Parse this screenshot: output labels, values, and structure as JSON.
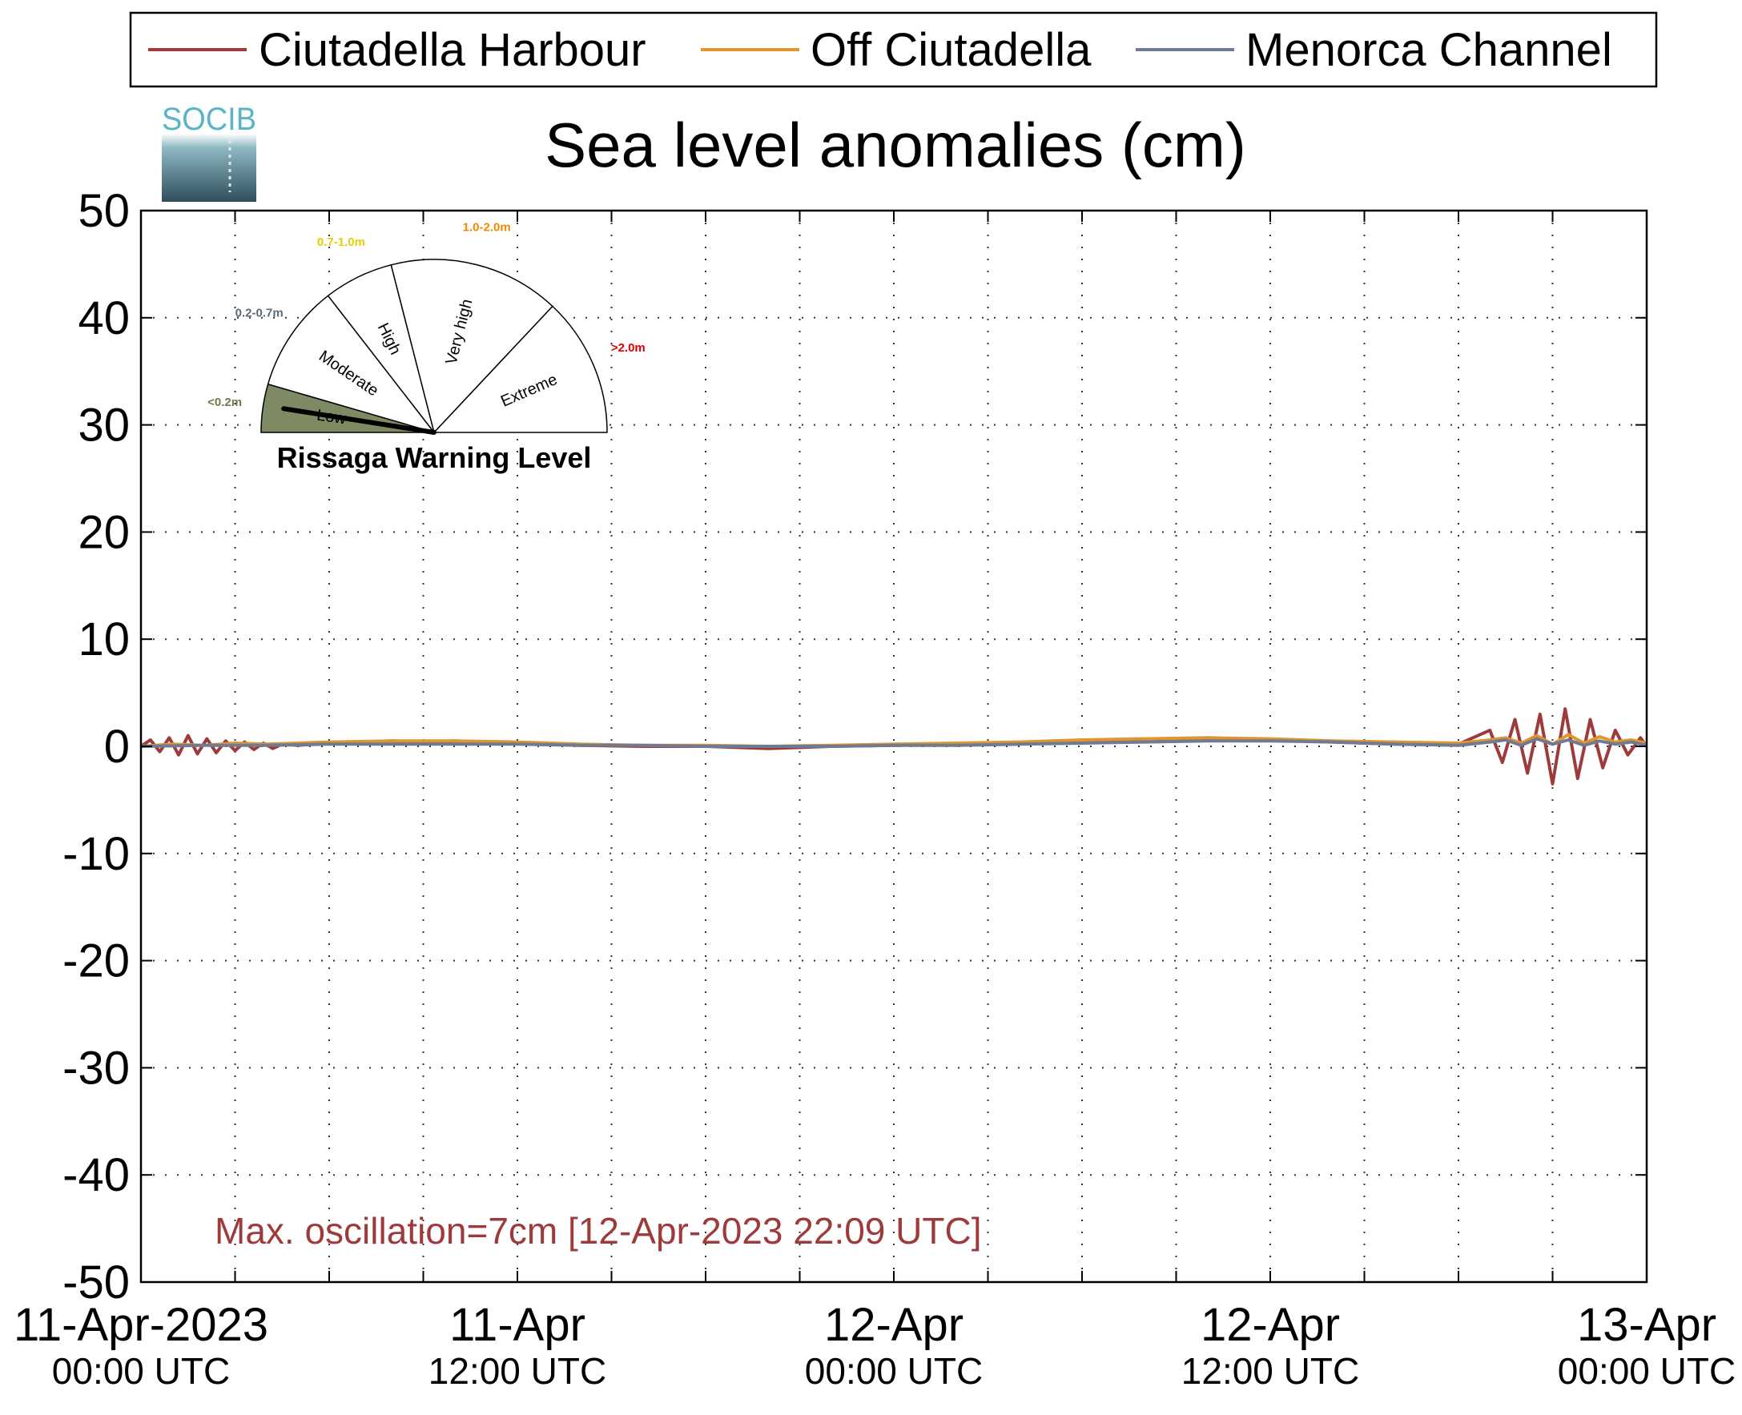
{
  "logo": {
    "text": "SOCIB"
  },
  "chart_data": {
    "type": "line",
    "title": "Sea level anomalies (cm)",
    "xlabel": "",
    "ylabel": "",
    "ylim": [
      -50,
      50
    ],
    "yticks": [
      50,
      40,
      30,
      20,
      10,
      0,
      -10,
      -20,
      -30,
      -40,
      -50
    ],
    "xlim_hours": [
      0,
      48
    ],
    "xticks": [
      {
        "hour": 0,
        "line1": "11-Apr-2023",
        "line2": "00:00 UTC"
      },
      {
        "hour": 12,
        "line1": "11-Apr",
        "line2": "12:00 UTC"
      },
      {
        "hour": 24,
        "line1": "12-Apr",
        "line2": "00:00 UTC"
      },
      {
        "hour": 36,
        "line1": "12-Apr",
        "line2": "12:00 UTC"
      },
      {
        "hour": 48,
        "line1": "13-Apr",
        "line2": "00:00 UTC"
      }
    ],
    "grid": true,
    "legend_placement": "top",
    "series": [
      {
        "name": "Ciutadella Harbour",
        "color": "#9e3a3a",
        "x": [
          0,
          0.3,
          0.6,
          0.9,
          1.2,
          1.5,
          1.8,
          2.1,
          2.4,
          2.7,
          3.0,
          3.3,
          3.6,
          3.9,
          4.2,
          4.5,
          5,
          6,
          7,
          8,
          9,
          10,
          11,
          12,
          14,
          16,
          18,
          20,
          22,
          24,
          26,
          28,
          30,
          32,
          34,
          36,
          38,
          40,
          42,
          43,
          43.4,
          43.8,
          44.2,
          44.6,
          45.0,
          45.4,
          45.8,
          46.2,
          46.6,
          47.0,
          47.4,
          47.8,
          48
        ],
        "y": [
          0,
          0.6,
          -0.5,
          0.8,
          -0.8,
          1.0,
          -0.7,
          0.7,
          -0.6,
          0.5,
          -0.4,
          0.4,
          -0.3,
          0.3,
          -0.2,
          0.2,
          0.1,
          0.3,
          0.4,
          0.5,
          0.4,
          0.5,
          0.4,
          0.3,
          0.1,
          0.0,
          0.0,
          -0.2,
          0.0,
          0.1,
          0.2,
          0.3,
          0.5,
          0.6,
          0.7,
          0.6,
          0.4,
          0.2,
          0.2,
          1.5,
          -1.5,
          2.5,
          -2.5,
          3.0,
          -3.5,
          3.5,
          -3.0,
          2.5,
          -2.0,
          1.5,
          -0.8,
          0.8,
          0.0
        ]
      },
      {
        "name": "Off Ciutadella",
        "color": "#e0952e",
        "x": [
          0,
          1,
          2,
          3,
          4,
          5,
          6,
          8,
          10,
          12,
          14,
          16,
          18,
          20,
          22,
          24,
          26,
          28,
          30,
          32,
          34,
          36,
          38,
          40,
          42,
          43,
          43.5,
          44,
          44.5,
          45,
          45.5,
          46,
          46.5,
          47,
          47.5,
          48
        ],
        "y": [
          0,
          0.2,
          0.1,
          0.3,
          0.2,
          0.3,
          0.4,
          0.5,
          0.5,
          0.4,
          0.2,
          0.1,
          0.1,
          0.0,
          0.1,
          0.2,
          0.3,
          0.4,
          0.6,
          0.7,
          0.8,
          0.7,
          0.5,
          0.4,
          0.3,
          0.6,
          0.8,
          0.3,
          1.0,
          0.2,
          1.1,
          0.3,
          0.9,
          0.4,
          0.6,
          0.3
        ]
      },
      {
        "name": "Menorca Channel",
        "color": "#6f7a95",
        "x": [
          0,
          2,
          4,
          6,
          8,
          10,
          12,
          14,
          16,
          18,
          20,
          22,
          24,
          26,
          28,
          30,
          32,
          34,
          36,
          38,
          40,
          42,
          43,
          43.5,
          44,
          44.5,
          45,
          45.5,
          46,
          46.5,
          47,
          47.5,
          48
        ],
        "y": [
          0,
          0.1,
          0.1,
          0.2,
          0.2,
          0.2,
          0.2,
          0.1,
          0.1,
          0.0,
          0.0,
          0.0,
          0.1,
          0.1,
          0.2,
          0.3,
          0.4,
          0.5,
          0.5,
          0.4,
          0.2,
          0.1,
          0.4,
          0.6,
          0.1,
          0.7,
          0.2,
          0.6,
          0.1,
          0.5,
          0.2,
          0.4,
          0.1
        ]
      }
    ],
    "annotation": "Max. oscillation=7cm [12-Apr-2023 22:09 UTC]",
    "annotation_color": "#9e3a3a"
  },
  "gauge": {
    "title": "Rissaga Warning Level",
    "needle_fraction": 0.05,
    "segments": [
      {
        "label": "Low",
        "range": "<0.2m",
        "range_color": "#6f7a4f",
        "fill": "#7d8a63"
      },
      {
        "label": "Moderate",
        "range": "0.2-0.7m",
        "range_color": "#5a6a7a",
        "fill": "#ffffff"
      },
      {
        "label": "High",
        "range": "0.7-1.0m",
        "range_color": "#e5d000",
        "fill": "#ffffff"
      },
      {
        "label": "Very high",
        "range": "1.0-2.0m",
        "range_color": "#f08a00",
        "fill": "#ffffff"
      },
      {
        "label": "Extreme",
        "range": ">2.0m",
        "range_color": "#e00000",
        "fill": "#ffffff"
      }
    ]
  }
}
